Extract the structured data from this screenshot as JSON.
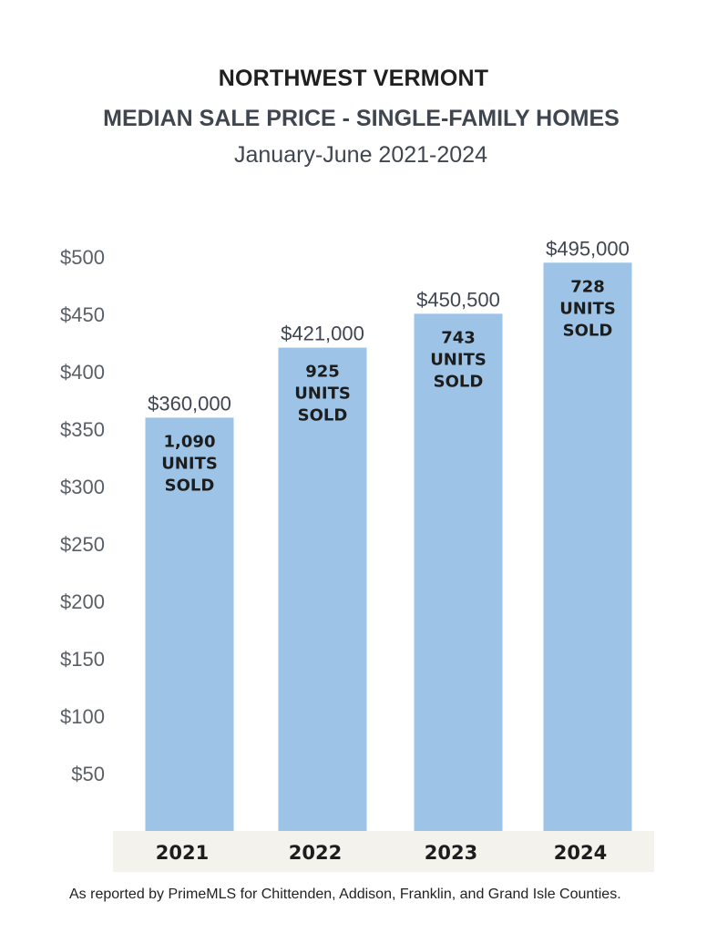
{
  "chart_data": {
    "type": "bar",
    "title": "NORTHWEST VERMONT",
    "subtitle": "MEDIAN SALE PRICE - SINGLE-FAMILY HOMES",
    "period": "January-June 2021-2024",
    "categories": [
      "2021",
      "2022",
      "2023",
      "2024"
    ],
    "values": [
      360,
      421,
      450.5,
      495
    ],
    "value_labels": [
      "$360,000",
      "$421,000",
      "$450,500",
      "$495,000"
    ],
    "annotations": [
      [
        "1,090",
        "UNITS",
        "SOLD"
      ],
      [
        "925",
        "UNITS",
        "SOLD"
      ],
      [
        "743",
        "UNITS",
        "SOLD"
      ],
      [
        "728",
        "UNITS",
        "SOLD"
      ]
    ],
    "yticks": [
      50,
      100,
      150,
      200,
      250,
      300,
      350,
      400,
      450,
      500
    ],
    "ytick_labels": [
      "$50",
      "$100",
      "$150",
      "$200",
      "$250",
      "$300",
      "$350",
      "$400",
      "$450",
      "$500"
    ],
    "ylim": [
      0,
      500
    ],
    "grid": false,
    "bar_color": "#9dc3e6",
    "category_band_color": "#f4f2ec"
  },
  "footnote": "As reported by PrimeMLS for Chittenden, Addison, Franklin, and Grand Isle Counties."
}
